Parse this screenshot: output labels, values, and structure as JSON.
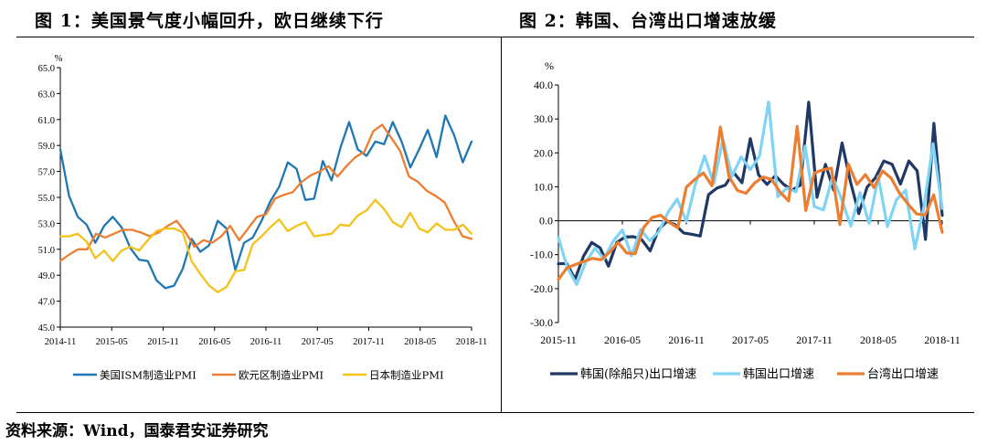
{
  "title_left": "图 1：美国景气度小幅回升，欧日继续下行",
  "title_right": "图 2：韩国、台湾出口增速放缓",
  "source": "资料来源：Wind，国泰君安证券研究",
  "chart_data": [
    {
      "type": "line",
      "ylabel": "%",
      "ylim": [
        45.0,
        65.0
      ],
      "yticks": [
        "45.0",
        "47.0",
        "49.0",
        "51.0",
        "53.0",
        "55.0",
        "57.0",
        "59.0",
        "61.0",
        "63.0",
        "65.0"
      ],
      "x_start": "2014-11",
      "x_end": "2018-11",
      "xticks": [
        "2014-11",
        "2015-05",
        "2015-11",
        "2016-05",
        "2016-11",
        "2017-05",
        "2017-11",
        "2018-05",
        "2018-11"
      ],
      "legend_position": "bottom",
      "series": [
        {
          "name": "美国ISM制造业PMI",
          "color": "#1F77B4",
          "values": [
            58.7,
            55.1,
            53.5,
            52.9,
            51.5,
            52.8,
            53.5,
            52.7,
            51.1,
            50.2,
            50.1,
            48.6,
            48.0,
            48.2,
            49.5,
            51.8,
            50.8,
            51.3,
            53.2,
            52.6,
            49.4,
            51.5,
            51.9,
            53.2,
            54.7,
            55.8,
            57.7,
            57.2,
            54.8,
            54.9,
            57.8,
            56.3,
            58.8,
            60.8,
            58.7,
            58.2,
            59.3,
            59.1,
            60.8,
            59.3,
            57.3,
            58.7,
            60.2,
            58.1,
            61.3,
            59.8,
            57.7,
            59.3
          ]
        },
        {
          "name": "欧元区制造业PMI",
          "color": "#ED7D31",
          "values": [
            50.1,
            50.6,
            51.0,
            51.0,
            52.2,
            51.9,
            52.2,
            52.5,
            52.5,
            52.3,
            52.0,
            52.3,
            52.8,
            53.2,
            52.3,
            51.2,
            51.7,
            51.5,
            52.0,
            52.8,
            51.7,
            52.6,
            53.5,
            53.7,
            54.9,
            55.2,
            55.4,
            56.2,
            56.7,
            57.0,
            57.4,
            56.6,
            57.4,
            58.1,
            58.5,
            60.1,
            60.6,
            59.6,
            58.6,
            56.6,
            56.2,
            55.5,
            55.1,
            54.6,
            53.2,
            52.0,
            51.8
          ]
        },
        {
          "name": "日本制造业PMI",
          "color": "#F5C21A",
          "values": [
            52.0,
            52.0,
            52.2,
            51.6,
            50.3,
            50.9,
            50.1,
            50.9,
            51.2,
            50.9,
            51.7,
            52.4,
            52.6,
            52.6,
            52.3,
            50.1,
            49.1,
            48.2,
            47.7,
            48.1,
            49.3,
            49.4,
            51.4,
            52.0,
            52.7,
            53.3,
            52.4,
            52.8,
            53.1,
            52.0,
            52.1,
            52.2,
            52.9,
            52.8,
            53.6,
            54.0,
            54.8,
            54.1,
            53.1,
            52.7,
            53.8,
            52.6,
            52.3,
            53.0,
            52.5,
            52.5,
            52.9,
            52.2
          ]
        }
      ]
    },
    {
      "type": "line",
      "ylabel": "%",
      "ylim": [
        -30.0,
        40.0
      ],
      "yticks": [
        "-30.0",
        "-20.0",
        "-10.0",
        "0.0",
        "10.0",
        "20.0",
        "30.0",
        "40.0"
      ],
      "x_start": "2015-11",
      "x_end": "2018-11",
      "xticks": [
        "2015-11",
        "2016-05",
        "2016-11",
        "2017-05",
        "2017-11",
        "2018-05",
        "2018-11"
      ],
      "legend_position": "bottom",
      "series": [
        {
          "name": "韩国(除船只)出口增速",
          "color": "#1F3864",
          "values": [
            -12.7,
            -12.6,
            -17.2,
            -10.5,
            -6.4,
            -8.0,
            -13.4,
            -6.4,
            -4.8,
            -4.7,
            -5.6,
            -8.9,
            -2.6,
            -0.2,
            -1.2,
            -3.6,
            -4.0,
            -4.5,
            7.7,
            9.6,
            10.5,
            14.2,
            11.2,
            24.2,
            13.5,
            10.7,
            13.3,
            10.7,
            9.0,
            10.5,
            34.9,
            6.9,
            16.6,
            9.0,
            22.9,
            11.5,
            2.1,
            9.9,
            12.7,
            17.6,
            16.6,
            10.8,
            17.6,
            14.7,
            -5.5,
            28.7,
            1.6
          ]
        },
        {
          "name": "韩国出口增速",
          "color": "#7FD3F5",
          "values": [
            -5.0,
            -13.9,
            -18.8,
            -12.2,
            -8.1,
            -11.2,
            -6.0,
            -2.7,
            -10.3,
            -2.6,
            -5.9,
            -3.2,
            2.5,
            6.4,
            -0.2,
            10.9,
            19.1,
            10.9,
            23.9,
            13.1,
            18.8,
            15.1,
            19.0,
            35.0,
            7.1,
            9.6,
            8.5,
            22.0,
            4.2,
            3.2,
            12.9,
            6.3,
            -1.6,
            8.3,
            -0.8,
            13.0,
            -1.7,
            6.2,
            9.0,
            -8.3,
            4.2,
            22.7,
            3.6
          ]
        },
        {
          "name": "台湾出口增速",
          "color": "#ED7D31",
          "values": [
            -17.3,
            -13.9,
            -12.9,
            -12.0,
            -11.1,
            -11.5,
            -9.3,
            -6.4,
            -9.5,
            -9.7,
            -2.0,
            1.0,
            1.6,
            -0.5,
            -2.1,
            9.9,
            12.2,
            14.1,
            10.3,
            27.6,
            13.0,
            8.9,
            8.1,
            11.1,
            12.9,
            12.2,
            8.4,
            5.8,
            27.8,
            3.0,
            14.1,
            15.0,
            15.5,
            -1.1,
            16.7,
            10.7,
            13.6,
            9.8,
            14.7,
            12.6,
            8.1,
            4.9,
            2.0,
            1.7,
            7.6,
            -3.4
          ]
        }
      ]
    }
  ]
}
